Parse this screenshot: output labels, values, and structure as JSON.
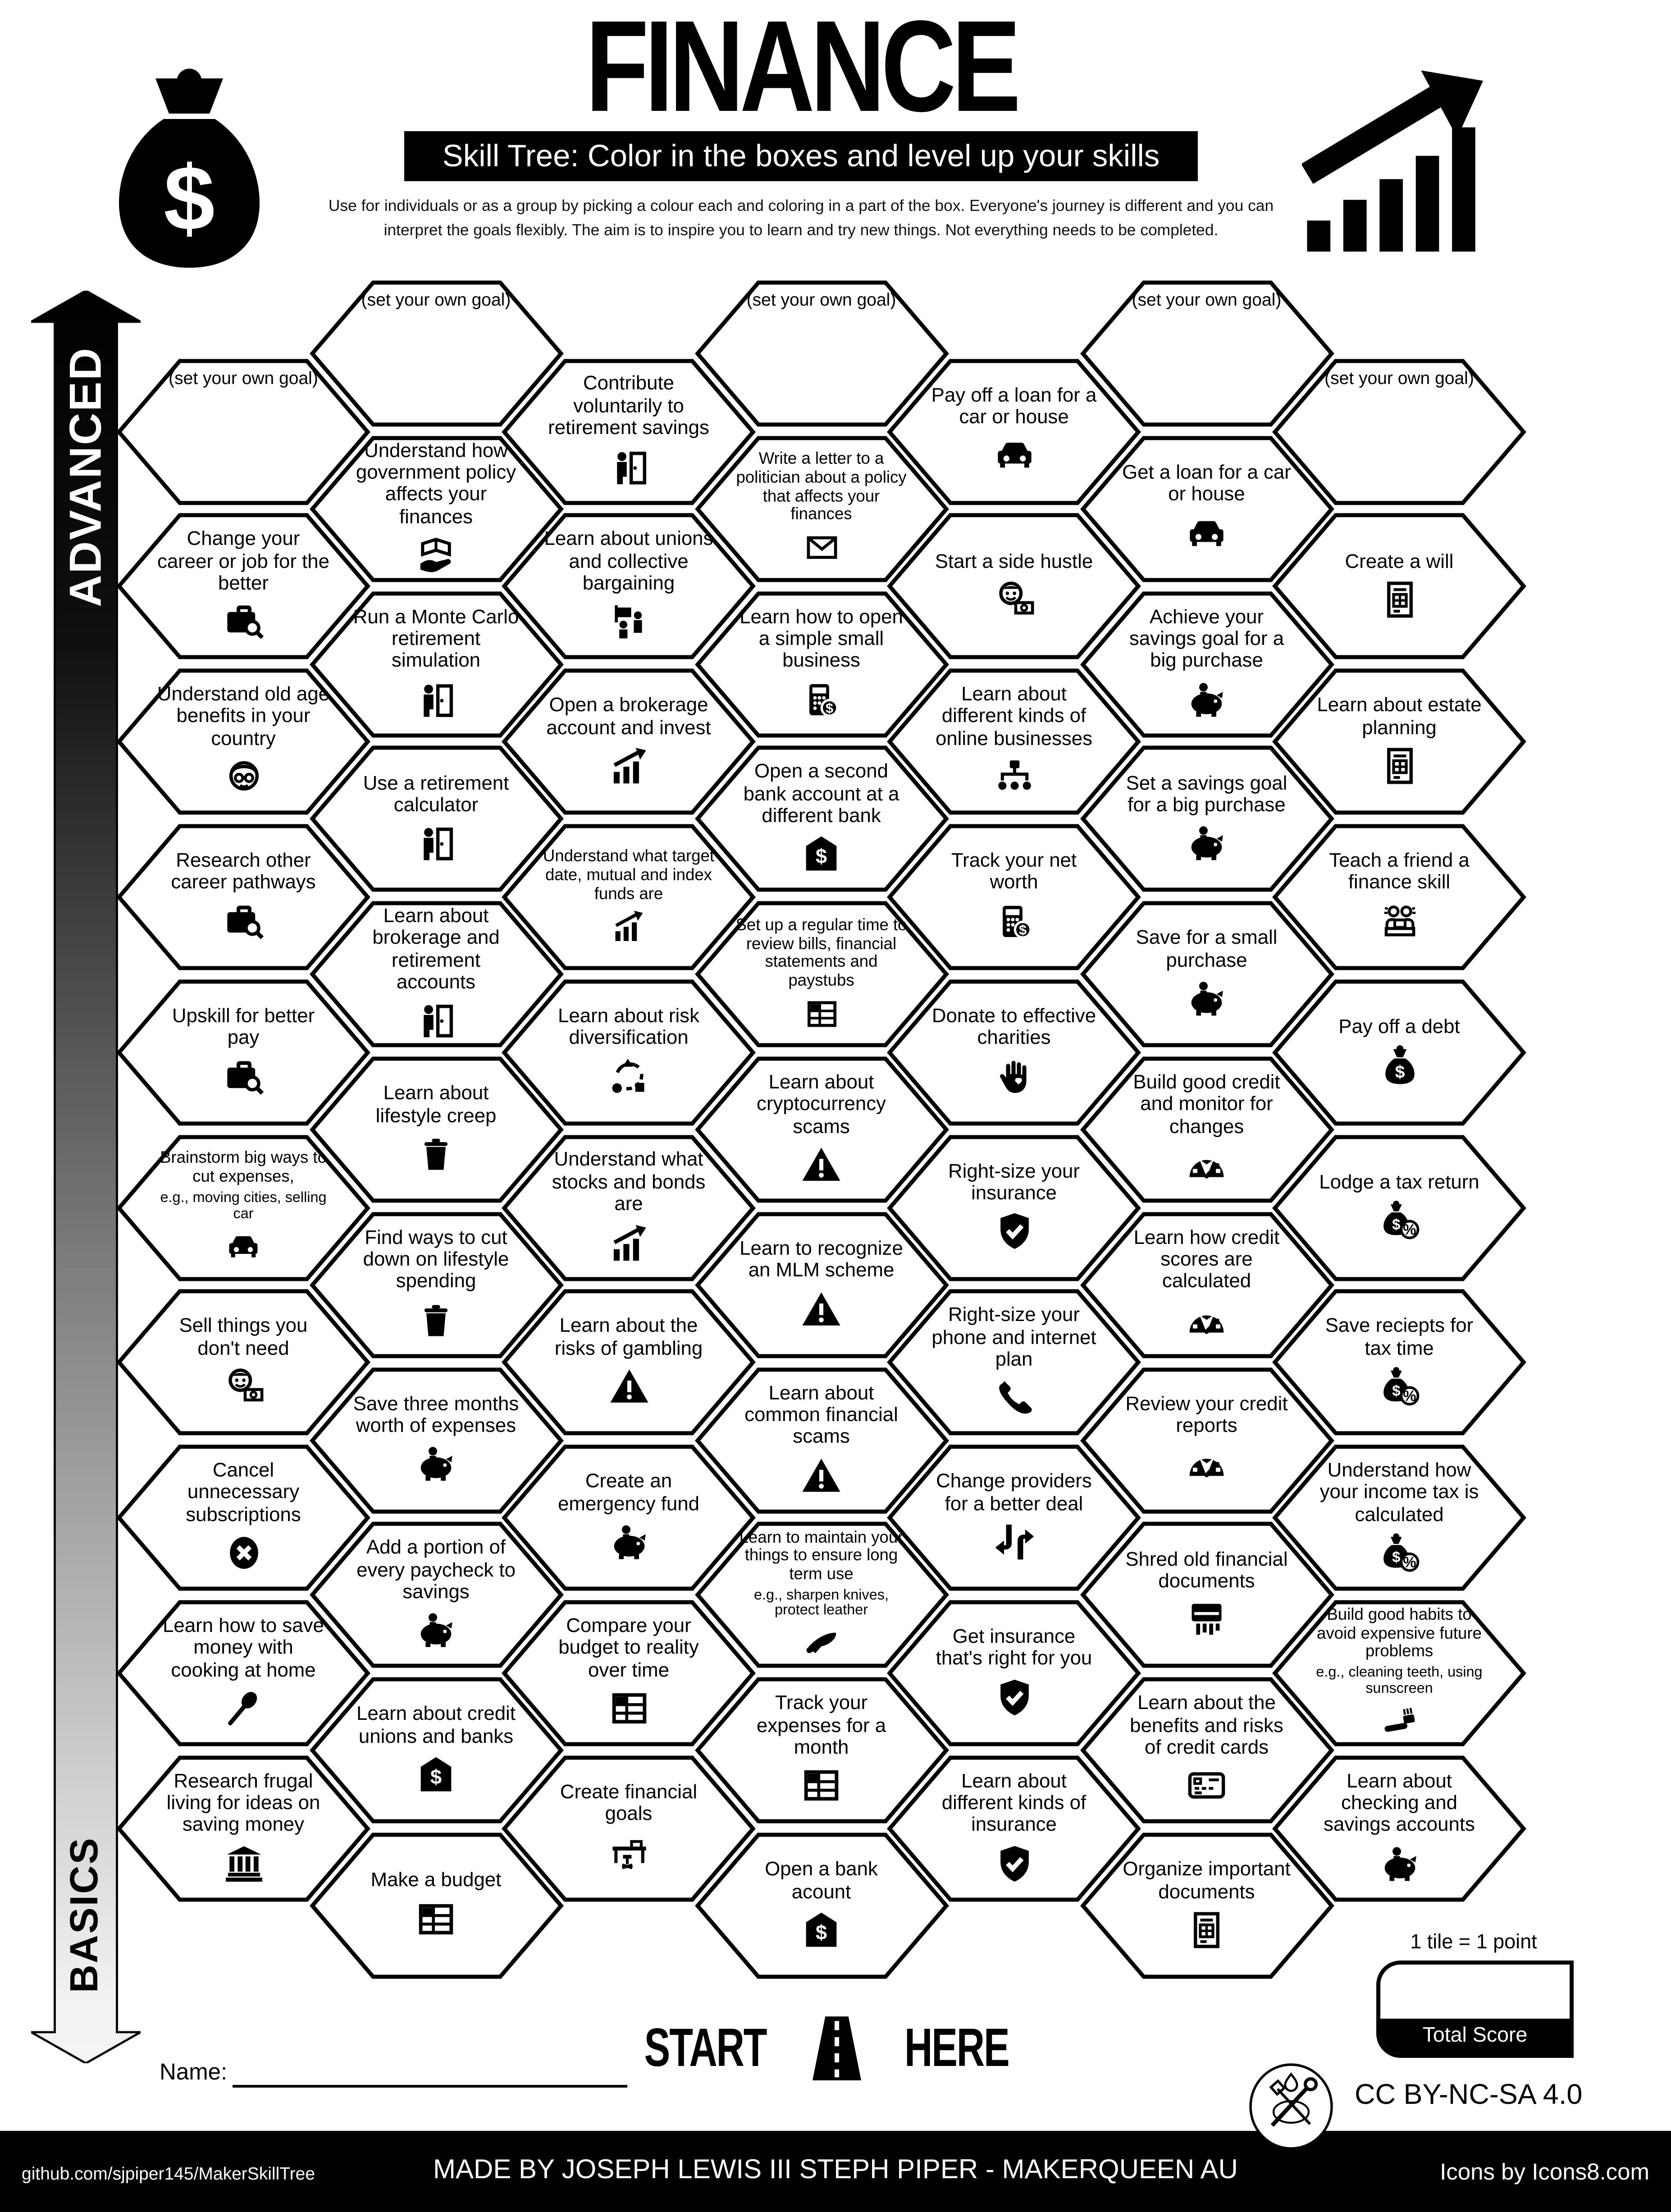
{
  "colors": {
    "ink": "#000000",
    "paper": "#ffffff"
  },
  "header": {
    "title": "FINANCE",
    "subtitle": "Skill Tree:  Color in the boxes and level up your skills",
    "description_line1": "Use for individuals or as a group by picking a colour each and coloring in a part of the box.  Everyone's journey is different and you can",
    "description_line2": "interpret the goals flexibly.  The aim is to inspire you to learn and try new things. Not everything needs to be completed."
  },
  "axis": {
    "top_label": "ADVANCED",
    "bottom_label": "BASICS"
  },
  "grid": {
    "goal_label": "(set your own goal)",
    "tiles": [
      {
        "col": 0,
        "row": 0,
        "label": "(set your own goal)",
        "goal": true
      },
      {
        "col": 0,
        "row": 1,
        "label": "Change your career or job for the better",
        "icon": "briefcase-search"
      },
      {
        "col": 0,
        "row": 2,
        "label": "Understand old age benefits in your country",
        "icon": "elderly-man"
      },
      {
        "col": 0,
        "row": 3,
        "label": "Research other career pathways",
        "icon": "briefcase-search"
      },
      {
        "col": 0,
        "row": 4,
        "label": "Upskill for better pay",
        "icon": "briefcase-search"
      },
      {
        "col": 0,
        "row": 5,
        "label": "Brainstorm big ways to cut expenses,",
        "sub": "e.g., moving cities, selling car",
        "icon": "car",
        "small": true
      },
      {
        "col": 0,
        "row": 6,
        "label": "Sell things you don't need",
        "icon": "person-cash"
      },
      {
        "col": 0,
        "row": 7,
        "label": "Cancel unnecessary subscriptions",
        "icon": "cancel-circle"
      },
      {
        "col": 0,
        "row": 8,
        "label": "Learn how to save money with cooking at home",
        "icon": "spoon"
      },
      {
        "col": 0,
        "row": 9,
        "label": "Research frugal living for ideas on saving money",
        "icon": "bank-columns"
      },
      {
        "col": 1,
        "row": 0,
        "label": "(set your own goal)",
        "goal": true
      },
      {
        "col": 1,
        "row": 1,
        "label": "Understand how government policy affects your finances",
        "icon": "book-hand"
      },
      {
        "col": 1,
        "row": 2,
        "label": "Run a Monte Carlo retirement simulation",
        "icon": "person-door"
      },
      {
        "col": 1,
        "row": 3,
        "label": "Use a retirement calculator",
        "icon": "person-door"
      },
      {
        "col": 1,
        "row": 4,
        "label": "Learn about brokerage and retirement accounts",
        "icon": "person-door"
      },
      {
        "col": 1,
        "row": 5,
        "label": "Learn about lifestyle creep",
        "icon": "trash-can"
      },
      {
        "col": 1,
        "row": 6,
        "label": "Find ways to cut down on lifestyle spending",
        "icon": "trash-can"
      },
      {
        "col": 1,
        "row": 7,
        "label": "Save three months worth of expenses",
        "icon": "piggy-bank"
      },
      {
        "col": 1,
        "row": 8,
        "label": "Add a portion of every paycheck to savings",
        "icon": "piggy-bank"
      },
      {
        "col": 1,
        "row": 9,
        "label": "Learn about credit unions and banks",
        "icon": "bank-dollar"
      },
      {
        "col": 1,
        "row": 10,
        "label": "Make a budget",
        "icon": "spreadsheet"
      },
      {
        "col": 2,
        "row": 0,
        "label": "Contribute voluntarily to retirement savings",
        "icon": "person-door"
      },
      {
        "col": 2,
        "row": 1,
        "label": "Learn about unions and collective bargaining",
        "icon": "protest"
      },
      {
        "col": 2,
        "row": 2,
        "label": "Open a brokerage account and invest",
        "icon": "chart-growth"
      },
      {
        "col": 2,
        "row": 3,
        "label": "Understand what target date, mutual and index funds are",
        "icon": "chart-growth",
        "small": true
      },
      {
        "col": 2,
        "row": 4,
        "label": "Learn about risk diversification",
        "icon": "shapes-cycle"
      },
      {
        "col": 2,
        "row": 5,
        "label": "Understand what stocks and bonds are",
        "icon": "chart-growth"
      },
      {
        "col": 2,
        "row": 6,
        "label": "Learn about the risks of gambling",
        "icon": "warning"
      },
      {
        "col": 2,
        "row": 7,
        "label": "Create an emergency fund",
        "icon": "piggy-bank"
      },
      {
        "col": 2,
        "row": 8,
        "label": "Compare your budget to reality over time",
        "icon": "spreadsheet"
      },
      {
        "col": 2,
        "row": 9,
        "label": "Create financial goals",
        "icon": "desk"
      },
      {
        "col": 3,
        "row": 0,
        "label": "(set your own goal)",
        "goal": true
      },
      {
        "col": 3,
        "row": 1,
        "label": "Write a letter to a politician about a policy that affects your finances",
        "icon": "envelope",
        "small": true
      },
      {
        "col": 3,
        "row": 2,
        "label": "Learn how to open a simple small business",
        "icon": "calculator-dollar"
      },
      {
        "col": 3,
        "row": 3,
        "label": "Open a second bank account at a different bank",
        "icon": "bank-dollar"
      },
      {
        "col": 3,
        "row": 4,
        "label": "Set up a regular time to review bills, financial statements and paystubs",
        "icon": "spreadsheet",
        "small": true
      },
      {
        "col": 3,
        "row": 5,
        "label": "Learn about cryptocurrency scams",
        "icon": "warning"
      },
      {
        "col": 3,
        "row": 6,
        "label": "Learn to recognize an MLM scheme",
        "icon": "warning"
      },
      {
        "col": 3,
        "row": 7,
        "label": "Learn about common financial scams",
        "icon": "warning"
      },
      {
        "col": 3,
        "row": 8,
        "label": "Learn to maintain your things to ensure long term use",
        "sub": "e.g., sharpen knives, protect leather",
        "icon": "knife",
        "small": true
      },
      {
        "col": 3,
        "row": 9,
        "label": "Track your expenses for a month",
        "icon": "spreadsheet"
      },
      {
        "col": 3,
        "row": 10,
        "label": "Open a bank acount",
        "icon": "bank-dollar"
      },
      {
        "col": 4,
        "row": 0,
        "label": "Pay off a loan for a car or house",
        "icon": "car"
      },
      {
        "col": 4,
        "row": 1,
        "label": "Start a side hustle",
        "icon": "person-cash"
      },
      {
        "col": 4,
        "row": 2,
        "label": "Learn about different kinds of online businesses",
        "icon": "hierarchy"
      },
      {
        "col": 4,
        "row": 3,
        "label": "Track your net worth",
        "icon": "calculator-dollar"
      },
      {
        "col": 4,
        "row": 4,
        "label": "Donate to effective charities",
        "icon": "hand-heart"
      },
      {
        "col": 4,
        "row": 5,
        "label": "Right-size your insurance",
        "icon": "shield-check"
      },
      {
        "col": 4,
        "row": 6,
        "label": "Right-size your phone and internet plan",
        "icon": "phone"
      },
      {
        "col": 4,
        "row": 7,
        "label": "Change providers for a better deal",
        "icon": "swap-arrows"
      },
      {
        "col": 4,
        "row": 8,
        "label": "Get insurance that's right for you",
        "icon": "shield-check"
      },
      {
        "col": 4,
        "row": 9,
        "label": "Learn about different kinds of insurance",
        "icon": "shield-check"
      },
      {
        "col": 5,
        "row": 0,
        "label": "(set your own goal)",
        "goal": true
      },
      {
        "col": 5,
        "row": 1,
        "label": "Get a loan for a car or house",
        "icon": "car"
      },
      {
        "col": 5,
        "row": 2,
        "label": "Achieve your savings goal for a big purchase",
        "icon": "piggy-bank"
      },
      {
        "col": 5,
        "row": 3,
        "label": "Set a savings goal for a big purchase",
        "icon": "piggy-bank"
      },
      {
        "col": 5,
        "row": 4,
        "label": "Save for a small purchase",
        "icon": "piggy-bank"
      },
      {
        "col": 5,
        "row": 5,
        "label": "Build good credit and monitor for changes",
        "icon": "gauge"
      },
      {
        "col": 5,
        "row": 6,
        "label": "Learn how credit scores are calculated",
        "icon": "gauge"
      },
      {
        "col": 5,
        "row": 7,
        "label": "Review your credit reports",
        "icon": "gauge"
      },
      {
        "col": 5,
        "row": 8,
        "label": "Shred old financial documents",
        "icon": "shredder"
      },
      {
        "col": 5,
        "row": 9,
        "label": "Learn about the benefits and risks of credit cards",
        "icon": "credit-card"
      },
      {
        "col": 5,
        "row": 10,
        "label": "Organize important documents",
        "icon": "document"
      },
      {
        "col": 6,
        "row": 0,
        "label": "(set your own goal)",
        "goal": true
      },
      {
        "col": 6,
        "row": 1,
        "label": "Create a will",
        "icon": "document"
      },
      {
        "col": 6,
        "row": 2,
        "label": "Learn about estate planning",
        "icon": "document"
      },
      {
        "col": 6,
        "row": 3,
        "label": "Teach a friend a finance skill",
        "icon": "teaching"
      },
      {
        "col": 6,
        "row": 4,
        "label": "Pay off a debt",
        "icon": "money-bag"
      },
      {
        "col": 6,
        "row": 5,
        "label": "Lodge a tax return",
        "icon": "money-bag-percent"
      },
      {
        "col": 6,
        "row": 6,
        "label": "Save reciepts for tax time",
        "icon": "money-bag-percent"
      },
      {
        "col": 6,
        "row": 7,
        "label": "Understand how your income tax is calculated",
        "icon": "money-bag-percent"
      },
      {
        "col": 6,
        "row": 8,
        "label": "Build good habits to avoid expensive future problems",
        "sub": "e.g., cleaning teeth, using sunscreen",
        "icon": "toothbrush",
        "small": true
      },
      {
        "col": 6,
        "row": 9,
        "label": "Learn about checking and savings accounts",
        "icon": "piggy-bank"
      }
    ]
  },
  "start": {
    "start_label": "START",
    "here_label": "HERE"
  },
  "name_field": {
    "label": "Name:"
  },
  "score": {
    "note": "1 tile = 1 point",
    "label": "Total Score"
  },
  "license": {
    "text": "CC BY-NC-SA 4.0"
  },
  "footer": {
    "site": "github.com/sjpiper145/MakerSkillTree",
    "made_by": "MADE BY  JOSEPH LEWIS III STEPH PIPER  -  MAKERQUEEN AU",
    "icons_credit": "Icons by Icons8.com"
  }
}
